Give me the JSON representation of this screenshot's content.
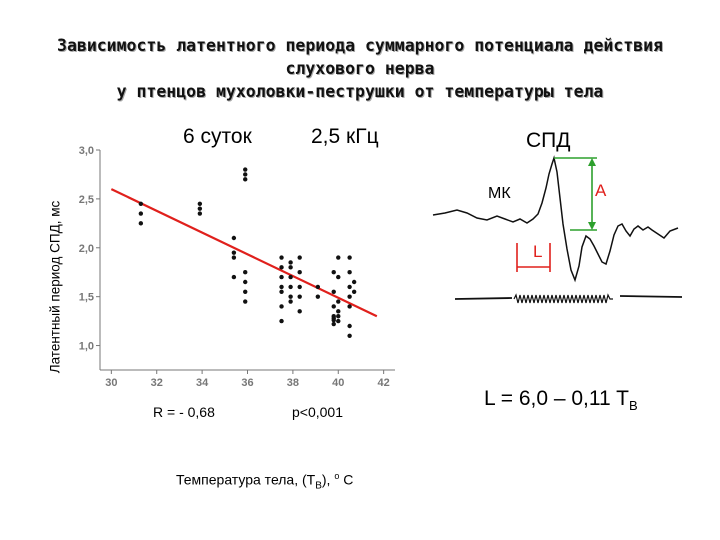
{
  "title": {
    "line1": "Зависимость латентного периода суммарного потенциала действия",
    "line2": "слухового нерва",
    "line3": "у птенцов мухоловки-пеструшки от температуры тела"
  },
  "labels": {
    "age": "6 суток",
    "frequency": "2,5 кГц",
    "spd": "СПД",
    "mk": "МК",
    "amp": "А",
    "lat": "L",
    "r": "R = - 0,68",
    "p": "p<0,001",
    "equation_main": "L = 6,0 – 0,11 T",
    "equation_sub": "B"
  },
  "chart_data": {
    "type": "scatter",
    "xlabel_main": "Температура тела, (T",
    "xlabel_sub": "B",
    "xlabel_end": "), ",
    "xlabel_deg": "о",
    "xlabel_unit": " C",
    "ylabel": "Латентный период СПД, мс",
    "xlim": [
      29.5,
      42.5
    ],
    "ylim": [
      0.75,
      3.0
    ],
    "xticks": [
      "30",
      "32",
      "34",
      "36",
      "38",
      "40",
      "42"
    ],
    "yticks": [
      "1,0",
      "1,5",
      "2,0",
      "2,5",
      "3,0"
    ],
    "points": [
      {
        "x": 31.3,
        "y": 2.45
      },
      {
        "x": 31.3,
        "y": 2.35
      },
      {
        "x": 31.3,
        "y": 2.25
      },
      {
        "x": 33.9,
        "y": 2.45
      },
      {
        "x": 33.9,
        "y": 2.4
      },
      {
        "x": 33.9,
        "y": 2.35
      },
      {
        "x": 35.4,
        "y": 2.1
      },
      {
        "x": 35.4,
        "y": 1.95
      },
      {
        "x": 35.4,
        "y": 1.9
      },
      {
        "x": 35.4,
        "y": 1.7
      },
      {
        "x": 35.9,
        "y": 2.8
      },
      {
        "x": 35.9,
        "y": 2.75
      },
      {
        "x": 35.9,
        "y": 2.7
      },
      {
        "x": 35.9,
        "y": 1.75
      },
      {
        "x": 35.9,
        "y": 1.65
      },
      {
        "x": 35.9,
        "y": 1.55
      },
      {
        "x": 35.9,
        "y": 1.45
      },
      {
        "x": 37.5,
        "y": 1.9
      },
      {
        "x": 37.5,
        "y": 1.8
      },
      {
        "x": 37.5,
        "y": 1.7
      },
      {
        "x": 37.5,
        "y": 1.6
      },
      {
        "x": 37.5,
        "y": 1.55
      },
      {
        "x": 37.5,
        "y": 1.4
      },
      {
        "x": 37.5,
        "y": 1.25
      },
      {
        "x": 37.9,
        "y": 1.85
      },
      {
        "x": 37.9,
        "y": 1.8
      },
      {
        "x": 37.9,
        "y": 1.7
      },
      {
        "x": 37.9,
        "y": 1.6
      },
      {
        "x": 37.9,
        "y": 1.5
      },
      {
        "x": 37.9,
        "y": 1.45
      },
      {
        "x": 38.3,
        "y": 1.9
      },
      {
        "x": 38.3,
        "y": 1.75
      },
      {
        "x": 38.3,
        "y": 1.6
      },
      {
        "x": 38.3,
        "y": 1.5
      },
      {
        "x": 38.3,
        "y": 1.35
      },
      {
        "x": 39.1,
        "y": 1.6
      },
      {
        "x": 39.1,
        "y": 1.5
      },
      {
        "x": 39.8,
        "y": 1.75
      },
      {
        "x": 39.8,
        "y": 1.55
      },
      {
        "x": 39.8,
        "y": 1.4
      },
      {
        "x": 39.8,
        "y": 1.3
      },
      {
        "x": 39.8,
        "y": 1.28
      },
      {
        "x": 39.8,
        "y": 1.26
      },
      {
        "x": 39.8,
        "y": 1.22
      },
      {
        "x": 40.0,
        "y": 1.9
      },
      {
        "x": 40.0,
        "y": 1.7
      },
      {
        "x": 40.0,
        "y": 1.45
      },
      {
        "x": 40.0,
        "y": 1.35
      },
      {
        "x": 40.0,
        "y": 1.3
      },
      {
        "x": 40.0,
        "y": 1.25
      },
      {
        "x": 40.5,
        "y": 1.75
      },
      {
        "x": 40.5,
        "y": 1.6
      },
      {
        "x": 40.5,
        "y": 1.5
      },
      {
        "x": 40.5,
        "y": 1.4
      },
      {
        "x": 40.5,
        "y": 1.2
      },
      {
        "x": 40.5,
        "y": 1.1
      },
      {
        "x": 40.5,
        "y": 1.9
      },
      {
        "x": 40.7,
        "y": 1.55
      },
      {
        "x": 40.7,
        "y": 1.65
      }
    ],
    "regression": {
      "x": [
        30.0,
        41.7
      ],
      "y": [
        2.6,
        1.3
      ]
    },
    "colors": {
      "points": "#111111",
      "regression": "#e0201c"
    }
  },
  "trace": {
    "colors": {
      "signal": "#111111",
      "markers": "#2da02d",
      "latency": "#e0201c"
    }
  }
}
